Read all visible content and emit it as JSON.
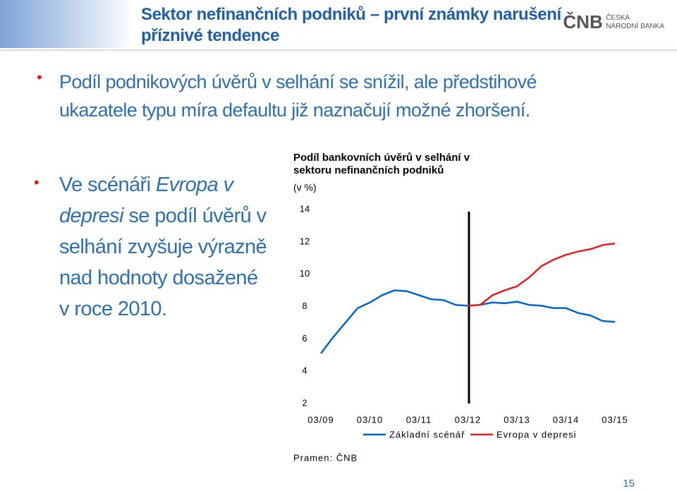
{
  "header": {
    "title_lines": [
      "Sektor nefinančních podniků – první známky narušení",
      "příznivé tendence"
    ],
    "logo": [
      "ČNB",
      "ČESKÁ",
      "NÁRODNÍ BANKA"
    ]
  },
  "bullets": {
    "first": "Podíl podnikových úvěrů v selhání se snížil, ale předstihové ukazatele typu míra defaultu již naznačují možné zhoršení.",
    "second": [
      "Ve scénáři ",
      "Evropa v depresi",
      " se podíl úvěrů v selhání zvyšuje výrazně nad hodnoty dosažené v roce 2010."
    ]
  },
  "chart_data": {
    "type": "line",
    "title": "Podíl bankovních úvěrů v selhání v sektoru nefinančních podniků",
    "y_unit": "(v %)",
    "categories": [
      "03/09",
      null,
      null,
      null,
      "03/10",
      null,
      null,
      null,
      "03/11",
      null,
      null,
      null,
      "03/12",
      null,
      null,
      null,
      "03/13",
      null,
      null,
      null,
      "03/14",
      null,
      null,
      null,
      "03/15"
    ],
    "series": [
      {
        "name": "Základní scénář",
        "color": "#0066cc",
        "values": [
          5.1,
          6.1,
          7.0,
          7.9,
          8.25,
          8.7,
          9.0,
          8.95,
          8.7,
          8.45,
          8.4,
          8.1,
          8.05,
          8.1,
          8.25,
          8.2,
          8.3,
          8.1,
          8.05,
          7.9,
          7.9,
          7.6,
          7.45,
          7.1,
          7.05
        ]
      },
      {
        "name": "Evropa v depresi",
        "color": "#e0201c",
        "values": [
          null,
          null,
          null,
          null,
          null,
          null,
          null,
          null,
          null,
          null,
          null,
          null,
          8.05,
          8.1,
          8.7,
          9.0,
          9.25,
          9.8,
          10.5,
          10.9,
          11.2,
          11.4,
          11.55,
          11.8,
          11.9
        ]
      }
    ],
    "ylim": [
      2,
      14
    ],
    "yticks": [
      2,
      4,
      6,
      8,
      10,
      12,
      14
    ],
    "grid": false,
    "legend": "bottom"
  },
  "source": "Pramen: ČNB",
  "page_number": "15"
}
